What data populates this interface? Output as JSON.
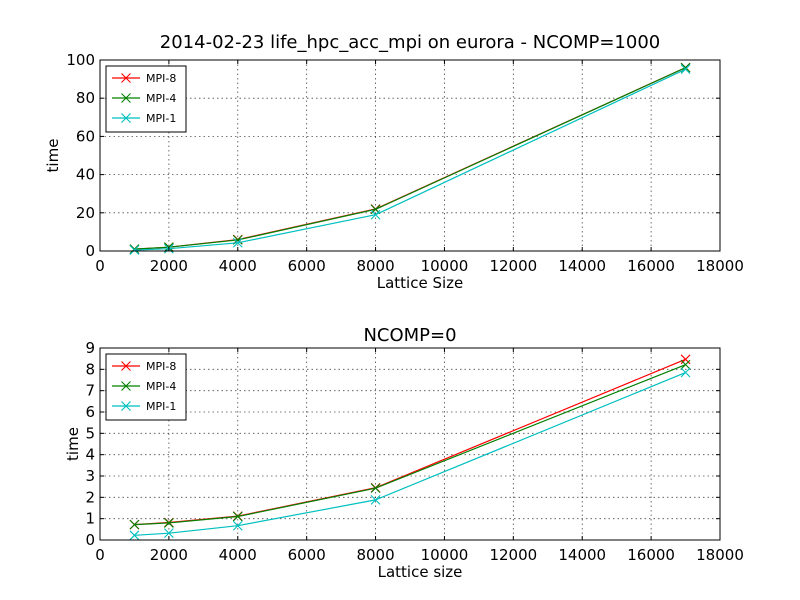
{
  "figure_title": "2014-02-23 life_hpc_acc_mpi on eurora - NCOMP=1000",
  "chart_data": [
    {
      "type": "line",
      "title": "",
      "xlabel": "Lattice Size",
      "ylabel": "time",
      "xlim": [
        0,
        18000
      ],
      "ylim": [
        0,
        100
      ],
      "xticks": [
        0,
        2000,
        4000,
        6000,
        8000,
        10000,
        12000,
        14000,
        16000,
        18000
      ],
      "yticks": [
        0,
        20,
        40,
        60,
        80,
        100
      ],
      "grid": true,
      "legend_position": "upper-left",
      "x": [
        1000,
        2000,
        4000,
        8000,
        17000
      ],
      "series": [
        {
          "name": "MPI-8",
          "color": "#ff0000",
          "values": [
            1.0,
            2.0,
            6.0,
            22.0,
            96.0
          ]
        },
        {
          "name": "MPI-4",
          "color": "#008000",
          "values": [
            1.0,
            2.0,
            5.8,
            21.8,
            96.0
          ]
        },
        {
          "name": "MPI-1",
          "color": "#00bfbf",
          "values": [
            0.5,
            1.2,
            4.3,
            19.0,
            95.2
          ]
        }
      ]
    },
    {
      "type": "line",
      "title": "NCOMP=0",
      "xlabel": "Lattice size",
      "ylabel": "time",
      "xlim": [
        0,
        18000
      ],
      "ylim": [
        0,
        9
      ],
      "xticks": [
        0,
        2000,
        4000,
        6000,
        8000,
        10000,
        12000,
        14000,
        16000,
        18000
      ],
      "yticks": [
        0,
        1,
        2,
        3,
        4,
        5,
        6,
        7,
        8,
        9
      ],
      "grid": true,
      "legend_position": "upper-left",
      "x": [
        1000,
        2000,
        4000,
        8000,
        17000
      ],
      "series": [
        {
          "name": "MPI-8",
          "color": "#ff0000",
          "values": [
            0.72,
            0.82,
            1.12,
            2.45,
            8.47
          ]
        },
        {
          "name": "MPI-4",
          "color": "#008000",
          "values": [
            0.72,
            0.8,
            1.1,
            2.43,
            8.22
          ]
        },
        {
          "name": "MPI-1",
          "color": "#00bfbf",
          "values": [
            0.22,
            0.32,
            0.67,
            1.88,
            7.85
          ]
        }
      ]
    }
  ]
}
